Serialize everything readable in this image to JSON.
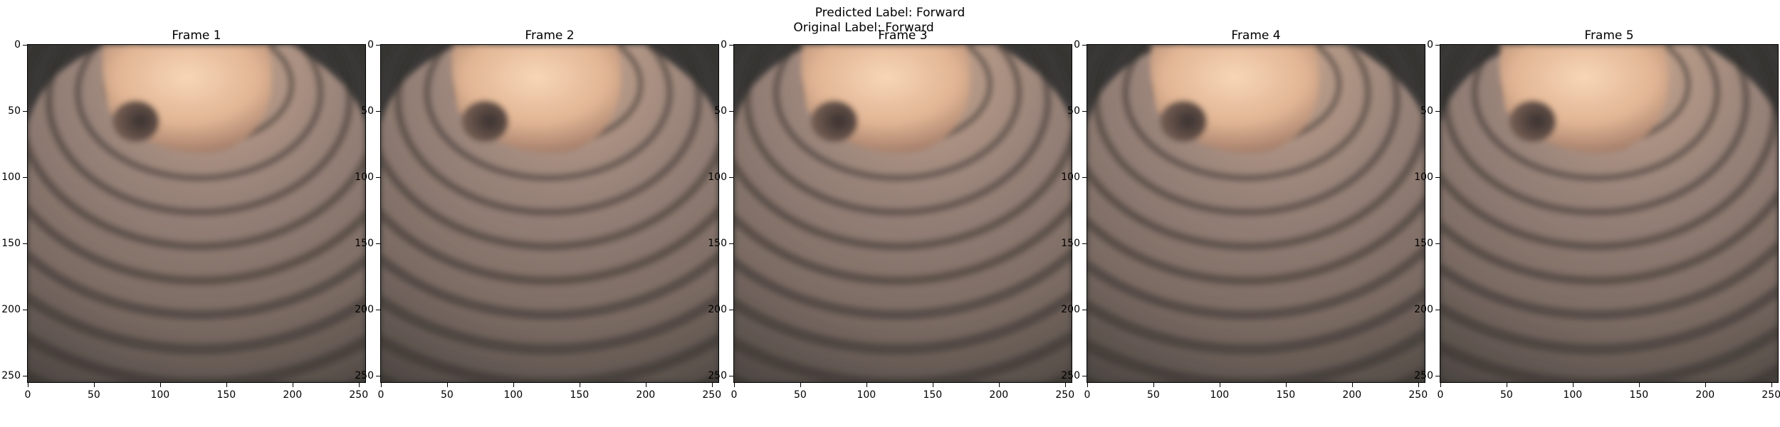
{
  "figure": {
    "predicted_label": "Predicted Label: Forward",
    "original_label": "Original Label: Forward"
  },
  "frames": [
    {
      "title": "Frame 1"
    },
    {
      "title": "Frame 2"
    },
    {
      "title": "Frame 3"
    },
    {
      "title": "Frame 4"
    },
    {
      "title": "Frame 5"
    }
  ],
  "axes": {
    "xlim": [
      0,
      256
    ],
    "ylim": [
      256,
      0
    ],
    "xticks": [
      "0",
      "50",
      "100",
      "150",
      "200",
      "250"
    ],
    "yticks": [
      "0",
      "50",
      "100",
      "150",
      "200",
      "250"
    ]
  },
  "colors": {
    "background": "#ffffff",
    "image_dark": "#3a3837",
    "image_tissue": "#8a7a73",
    "image_highlight": "#f2caa6"
  }
}
